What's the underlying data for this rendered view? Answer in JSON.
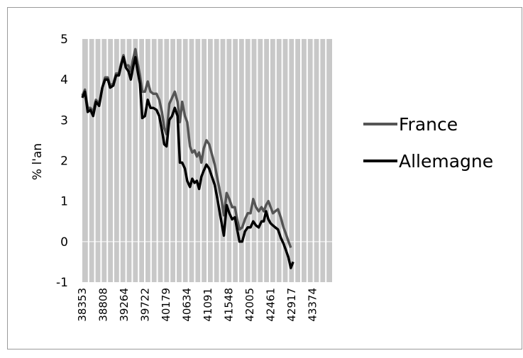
{
  "chart_data": {
    "type": "line",
    "title": "",
    "xlabel": "",
    "ylabel": "% l'an",
    "ylim": [
      -1,
      5
    ],
    "xlim": [
      38353,
      43800
    ],
    "yticks": [
      5,
      4,
      3,
      2,
      1,
      0,
      -1
    ],
    "xticks": [
      38353,
      38808,
      39264,
      39722,
      40179,
      40634,
      41091,
      41548,
      42005,
      42461,
      42917,
      43374
    ],
    "grid": "vertical",
    "plot_background": "#c8c8c8",
    "gridline_color": "#ffffff",
    "legend": "right",
    "series": [
      {
        "name": "France",
        "color": "#555555",
        "points": [
          [
            38353,
            3.6
          ],
          [
            38410,
            3.75
          ],
          [
            38470,
            3.3
          ],
          [
            38530,
            3.3
          ],
          [
            38590,
            3.2
          ],
          [
            38650,
            3.5
          ],
          [
            38720,
            3.4
          ],
          [
            38790,
            3.8
          ],
          [
            38850,
            4.05
          ],
          [
            38910,
            4.05
          ],
          [
            38960,
            3.85
          ],
          [
            39030,
            3.9
          ],
          [
            39090,
            4.15
          ],
          [
            39150,
            4.15
          ],
          [
            39200,
            4.4
          ],
          [
            39250,
            4.6
          ],
          [
            39300,
            4.35
          ],
          [
            39360,
            4.35
          ],
          [
            39410,
            4.2
          ],
          [
            39460,
            4.5
          ],
          [
            39510,
            4.75
          ],
          [
            39560,
            4.4
          ],
          [
            39610,
            4.1
          ],
          [
            39660,
            3.7
          ],
          [
            39720,
            3.7
          ],
          [
            39780,
            3.95
          ],
          [
            39840,
            3.7
          ],
          [
            39900,
            3.65
          ],
          [
            39970,
            3.65
          ],
          [
            40030,
            3.5
          ],
          [
            40090,
            3.2
          ],
          [
            40140,
            2.8
          ],
          [
            40190,
            2.65
          ],
          [
            40250,
            3.4
          ],
          [
            40310,
            3.55
          ],
          [
            40370,
            3.7
          ],
          [
            40430,
            3.45
          ],
          [
            40480,
            2.95
          ],
          [
            40530,
            3.45
          ],
          [
            40590,
            3.1
          ],
          [
            40640,
            2.95
          ],
          [
            40700,
            2.35
          ],
          [
            40750,
            2.2
          ],
          [
            40800,
            2.25
          ],
          [
            40850,
            2.1
          ],
          [
            40900,
            2.2
          ],
          [
            40950,
            1.95
          ],
          [
            41000,
            2.3
          ],
          [
            41060,
            2.5
          ],
          [
            41120,
            2.4
          ],
          [
            41180,
            2.15
          ],
          [
            41240,
            1.9
          ],
          [
            41300,
            1.55
          ],
          [
            41360,
            1.2
          ],
          [
            41400,
            0.95
          ],
          [
            41440,
            0.65
          ],
          [
            41500,
            1.2
          ],
          [
            41560,
            1.05
          ],
          [
            41620,
            0.85
          ],
          [
            41680,
            0.85
          ],
          [
            41730,
            0.55
          ],
          [
            41780,
            0.3
          ],
          [
            41840,
            0.35
          ],
          [
            41900,
            0.55
          ],
          [
            41960,
            0.7
          ],
          [
            42020,
            0.7
          ],
          [
            42080,
            1.05
          ],
          [
            42140,
            0.85
          ],
          [
            42200,
            0.75
          ],
          [
            42260,
            0.85
          ],
          [
            42310,
            0.75
          ],
          [
            42360,
            0.9
          ],
          [
            42410,
            1.0
          ],
          [
            42460,
            0.85
          ],
          [
            42510,
            0.7
          ],
          [
            42560,
            0.75
          ],
          [
            42620,
            0.8
          ],
          [
            42680,
            0.6
          ],
          [
            42740,
            0.35
          ],
          [
            42790,
            0.2
          ],
          [
            42850,
            0.0
          ],
          [
            42900,
            -0.15
          ]
        ]
      },
      {
        "name": "Allemagne",
        "color": "#000000",
        "points": [
          [
            38353,
            3.55
          ],
          [
            38410,
            3.7
          ],
          [
            38470,
            3.2
          ],
          [
            38530,
            3.25
          ],
          [
            38590,
            3.1
          ],
          [
            38650,
            3.45
          ],
          [
            38720,
            3.35
          ],
          [
            38790,
            3.8
          ],
          [
            38850,
            4.0
          ],
          [
            38910,
            4.0
          ],
          [
            38960,
            3.8
          ],
          [
            39030,
            3.85
          ],
          [
            39090,
            4.1
          ],
          [
            39150,
            4.1
          ],
          [
            39200,
            4.35
          ],
          [
            39250,
            4.55
          ],
          [
            39300,
            4.3
          ],
          [
            39360,
            4.2
          ],
          [
            39410,
            4.0
          ],
          [
            39460,
            4.3
          ],
          [
            39510,
            4.55
          ],
          [
            39560,
            4.2
          ],
          [
            39610,
            3.9
          ],
          [
            39660,
            3.05
          ],
          [
            39720,
            3.1
          ],
          [
            39780,
            3.5
          ],
          [
            39840,
            3.3
          ],
          [
            39900,
            3.3
          ],
          [
            39970,
            3.25
          ],
          [
            40030,
            3.1
          ],
          [
            40090,
            2.75
          ],
          [
            40140,
            2.4
          ],
          [
            40190,
            2.35
          ],
          [
            40250,
            3.0
          ],
          [
            40310,
            3.1
          ],
          [
            40370,
            3.3
          ],
          [
            40430,
            3.1
          ],
          [
            40480,
            1.95
          ],
          [
            40530,
            1.95
          ],
          [
            40590,
            1.8
          ],
          [
            40640,
            1.5
          ],
          [
            40700,
            1.35
          ],
          [
            40750,
            1.55
          ],
          [
            40800,
            1.45
          ],
          [
            40850,
            1.5
          ],
          [
            40900,
            1.3
          ],
          [
            40950,
            1.6
          ],
          [
            41000,
            1.75
          ],
          [
            41060,
            1.9
          ],
          [
            41120,
            1.8
          ],
          [
            41180,
            1.6
          ],
          [
            41240,
            1.4
          ],
          [
            41300,
            1.05
          ],
          [
            41360,
            0.65
          ],
          [
            41400,
            0.4
          ],
          [
            41440,
            0.15
          ],
          [
            41500,
            0.9
          ],
          [
            41560,
            0.7
          ],
          [
            41620,
            0.55
          ],
          [
            41680,
            0.6
          ],
          [
            41730,
            0.3
          ],
          [
            41780,
            0.0
          ],
          [
            41840,
            0.0
          ],
          [
            41900,
            0.25
          ],
          [
            41960,
            0.35
          ],
          [
            42020,
            0.35
          ],
          [
            42080,
            0.5
          ],
          [
            42140,
            0.4
          ],
          [
            42200,
            0.35
          ],
          [
            42260,
            0.5
          ],
          [
            42310,
            0.5
          ],
          [
            42360,
            0.75
          ],
          [
            42410,
            0.55
          ],
          [
            42460,
            0.45
          ],
          [
            42510,
            0.4
          ],
          [
            42560,
            0.35
          ],
          [
            42620,
            0.3
          ],
          [
            42680,
            0.1
          ],
          [
            42740,
            -0.05
          ],
          [
            42790,
            -0.2
          ],
          [
            42850,
            -0.4
          ],
          [
            42900,
            -0.65
          ],
          [
            42950,
            -0.5
          ]
        ]
      }
    ]
  }
}
